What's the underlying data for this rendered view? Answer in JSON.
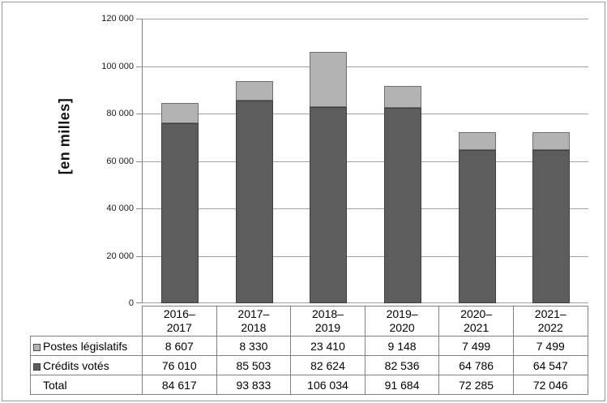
{
  "chart_data": {
    "type": "bar",
    "stacked": true,
    "ylabel": "[en milles]",
    "categories": [
      "2016–2017",
      "2017–2018",
      "2018–2019",
      "2019–2020",
      "2020–2021",
      "2021–2022"
    ],
    "series": [
      {
        "name": "Postes législatifs",
        "color": "#b3b3b3",
        "values": [
          8607,
          8330,
          23410,
          9148,
          7499,
          7499
        ]
      },
      {
        "name": "Crédits votés",
        "color": "#5d5d5d",
        "values": [
          76010,
          85503,
          82624,
          82536,
          64786,
          64547
        ]
      }
    ],
    "totals": [
      84617,
      93833,
      106034,
      91684,
      72285,
      72046
    ],
    "ylim": [
      0,
      120000
    ],
    "y_ticks": [
      "120 000",
      "100 000",
      "80 000",
      "60 000",
      "40 000",
      "20 000",
      "0"
    ],
    "grid": "horizontal",
    "legend_position": "table-rows-left"
  },
  "table": {
    "rows": [
      {
        "label": "Postes législatifs",
        "marker": "light",
        "cells": [
          "8 607",
          "8 330",
          "23 410",
          "9 148",
          "7 499",
          "7 499"
        ]
      },
      {
        "label": "Crédits votés",
        "marker": "dark",
        "cells": [
          "76 010",
          "85 503",
          "82 624",
          "82 536",
          "64 786",
          "64 547"
        ]
      },
      {
        "label": "Total",
        "marker": "none",
        "cells": [
          "84 617",
          "93 833",
          "106 034",
          "91 684",
          "72 285",
          "72 046"
        ]
      }
    ]
  },
  "colors": {
    "postes_fill": "#b3b3b3",
    "credits_fill": "#5d5d5d",
    "gridline": "#a3a3a3",
    "table_border": "#808080"
  }
}
